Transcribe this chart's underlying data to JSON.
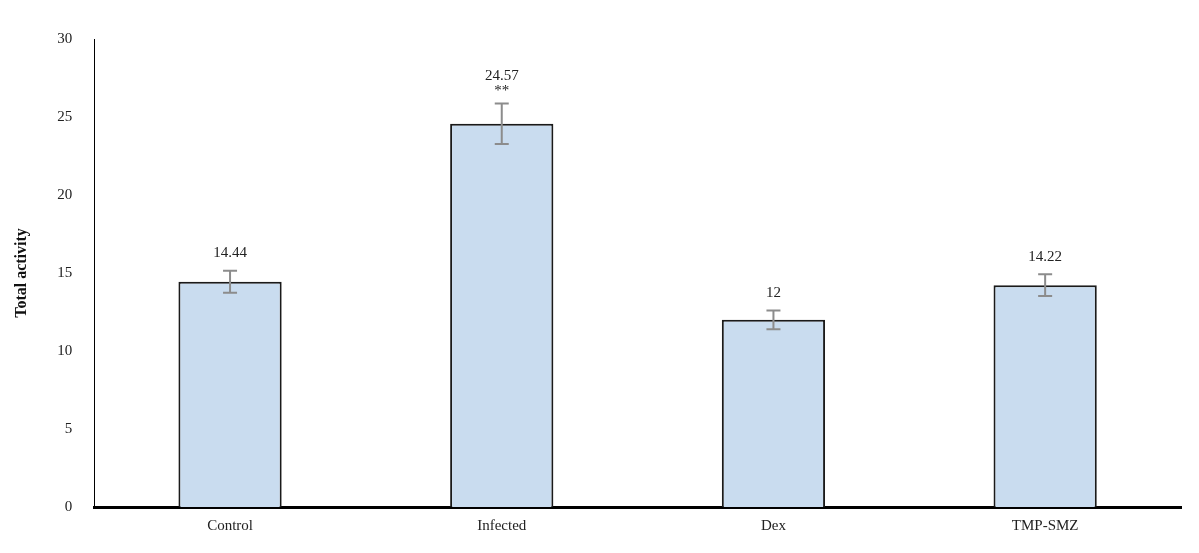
{
  "chart_data": {
    "type": "bar",
    "ylabel": "Total activity",
    "categories": [
      "Control",
      "Infected",
      "Dex",
      "TMP-SMZ"
    ],
    "values": [
      14.44,
      24.57,
      12,
      14.22
    ],
    "errors": [
      0.7,
      1.3,
      0.6,
      0.7
    ],
    "color": "#c9dcef",
    "data_labels": true,
    "annotations": [
      "**"
    ],
    "ylim": [
      0,
      30
    ],
    "yticks": [
      0,
      5,
      10,
      15,
      20,
      25,
      30
    ],
    "grid": false,
    "legend": false
  }
}
